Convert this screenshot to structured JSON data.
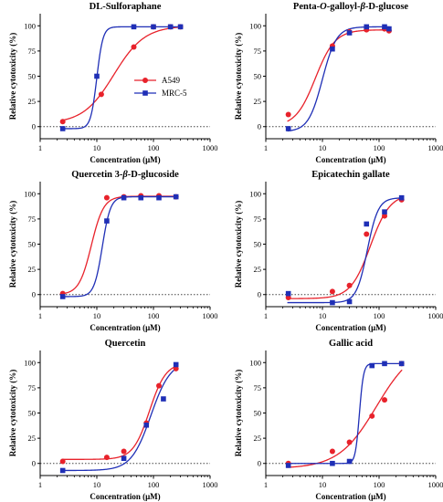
{
  "legend": {
    "entries": [
      {
        "label": "A549",
        "color": "#e8222b",
        "marker": "circle"
      },
      {
        "label": "MRC-5",
        "color": "#1f2fb6",
        "marker": "square"
      }
    ]
  },
  "chart_data": [
    {
      "type": "scatter",
      "title": "DL-Sulforaphane",
      "xlabel": "Concentration (μM)",
      "ylabel": "Relative cytotoxicity (%)",
      "x_scale": "log",
      "xlim": [
        1,
        1000
      ],
      "ylim": [
        0,
        100
      ],
      "x_ticks": [
        "1",
        "10",
        "100",
        "1000"
      ],
      "y_ticks": [
        "0",
        "25",
        "50",
        "75",
        "100"
      ],
      "series": [
        {
          "name": "A549",
          "points": [
            [
              2.5,
              5
            ],
            [
              12,
              32
            ],
            [
              45,
              79
            ],
            [
              100,
              99
            ],
            [
              200,
              99
            ],
            [
              300,
              99
            ]
          ],
          "fit": {
            "bottom": 3,
            "top": 100,
            "ec50": 20,
            "hill": 1.6
          }
        },
        {
          "name": "MRC-5",
          "points": [
            [
              2.5,
              -2
            ],
            [
              10,
              50
            ],
            [
              45,
              99
            ],
            [
              100,
              99
            ],
            [
              200,
              99
            ],
            [
              300,
              99
            ]
          ],
          "fit": {
            "bottom": -2,
            "top": 99,
            "ec50": 10,
            "hill": 8
          }
        }
      ]
    },
    {
      "type": "scatter",
      "title": "Penta-O-galloyl-β-D-glucose",
      "xlabel": "Concentration (μM)",
      "ylabel": "Relative cytotoxicity (%)",
      "x_scale": "log",
      "xlim": [
        1,
        1000
      ],
      "ylim": [
        0,
        100
      ],
      "x_ticks": [
        "1",
        "10",
        "100",
        "1000"
      ],
      "y_ticks": [
        "0",
        "25",
        "50",
        "75",
        "100"
      ],
      "series": [
        {
          "name": "A549",
          "points": [
            [
              2.5,
              12
            ],
            [
              15,
              80
            ],
            [
              30,
              94
            ],
            [
              60,
              96
            ],
            [
              125,
              97
            ],
            [
              150,
              95
            ]
          ],
          "fit": {
            "bottom": 0,
            "top": 96,
            "ec50": 7.5,
            "hill": 2.5
          }
        },
        {
          "name": "MRC-5",
          "points": [
            [
              2.5,
              -2
            ],
            [
              15,
              77
            ],
            [
              30,
              93
            ],
            [
              60,
              99
            ],
            [
              125,
              99
            ],
            [
              150,
              97
            ]
          ],
          "fit": {
            "bottom": -5,
            "top": 99,
            "ec50": 10,
            "hill": 3.5
          }
        }
      ]
    },
    {
      "type": "scatter",
      "title": "Quercetin 3-β-D-glucoside",
      "xlabel": "Concentration (μM)",
      "ylabel": "Relative cytotoxicity (%)",
      "x_scale": "log",
      "xlim": [
        1,
        1000
      ],
      "ylim": [
        0,
        100
      ],
      "x_ticks": [
        "1",
        "10",
        "100",
        "1000"
      ],
      "y_ticks": [
        "0",
        "25",
        "50",
        "75",
        "100"
      ],
      "series": [
        {
          "name": "A549",
          "points": [
            [
              2.5,
              1
            ],
            [
              15,
              96
            ],
            [
              30,
              97
            ],
            [
              60,
              98
            ],
            [
              125,
              98
            ],
            [
              250,
              97
            ]
          ],
          "fit": {
            "bottom": 0,
            "top": 97.5,
            "ec50": 8,
            "hill": 4
          }
        },
        {
          "name": "MRC-5",
          "points": [
            [
              2.5,
              -2
            ],
            [
              15,
              73
            ],
            [
              30,
              96
            ],
            [
              60,
              96
            ],
            [
              125,
              96
            ],
            [
              250,
              97
            ]
          ],
          "fit": {
            "bottom": -2,
            "top": 97,
            "ec50": 12.5,
            "hill": 6
          }
        }
      ]
    },
    {
      "type": "scatter",
      "title": "Epicatechin gallate",
      "xlabel": "Concentration (μM)",
      "ylabel": "Relative cytotoxicity (%)",
      "x_scale": "log",
      "xlim": [
        1,
        1000
      ],
      "ylim": [
        0,
        100
      ],
      "x_ticks": [
        "1",
        "10",
        "100",
        "1000"
      ],
      "y_ticks": [
        "0",
        "25",
        "50",
        "75",
        "100"
      ],
      "series": [
        {
          "name": "A549",
          "points": [
            [
              2.5,
              -3
            ],
            [
              15,
              3
            ],
            [
              30,
              9
            ],
            [
              60,
              60
            ],
            [
              125,
              78
            ],
            [
              250,
              94
            ]
          ],
          "fit": {
            "bottom": -4,
            "top": 100,
            "ec50": 70,
            "hill": 2.5
          }
        },
        {
          "name": "MRC-5",
          "points": [
            [
              2.5,
              1
            ],
            [
              15,
              -8
            ],
            [
              30,
              -7
            ],
            [
              60,
              70
            ],
            [
              125,
              82
            ],
            [
              250,
              96
            ]
          ],
          "fit": {
            "bottom": -8,
            "top": 96,
            "ec50": 62,
            "hill": 4.5
          }
        }
      ]
    },
    {
      "type": "scatter",
      "title": "Quercetin",
      "xlabel": "Concentration (μM)",
      "ylabel": "Relative cytotoxicity (%)",
      "x_scale": "log",
      "xlim": [
        1,
        1000
      ],
      "ylim": [
        0,
        100
      ],
      "x_ticks": [
        "1",
        "10",
        "100",
        "1000"
      ],
      "y_ticks": [
        "0",
        "25",
        "50",
        "75",
        "100"
      ],
      "series": [
        {
          "name": "A549",
          "points": [
            [
              2.5,
              2
            ],
            [
              15,
              6
            ],
            [
              30,
              12
            ],
            [
              75,
              40
            ],
            [
              125,
              77
            ],
            [
              250,
              94
            ]
          ],
          "fit": {
            "bottom": 4,
            "top": 100,
            "ec50": 85,
            "hill": 3
          }
        },
        {
          "name": "MRC-5",
          "points": [
            [
              2.5,
              -7
            ],
            [
              30,
              5
            ],
            [
              75,
              38
            ],
            [
              150,
              64
            ],
            [
              250,
              98
            ]
          ],
          "fit": {
            "bottom": -7,
            "top": 102,
            "ec50": 90,
            "hill": 2.5
          }
        }
      ]
    },
    {
      "type": "scatter",
      "title": "Gallic acid",
      "xlabel": "Concentration (μM)",
      "ylabel": "Relative cytotoxicity (%)",
      "x_scale": "log",
      "xlim": [
        1,
        1000
      ],
      "ylim": [
        0,
        100
      ],
      "x_ticks": [
        "1",
        "10",
        "100",
        "1000"
      ],
      "y_ticks": [
        "0",
        "25",
        "50",
        "75",
        "100"
      ],
      "series": [
        {
          "name": "A549",
          "points": [
            [
              2.5,
              0
            ],
            [
              15,
              12
            ],
            [
              30,
              21
            ],
            [
              75,
              47
            ],
            [
              125,
              63
            ],
            [
              250,
              99
            ]
          ],
          "fit": {
            "bottom": -5,
            "top": 118,
            "ec50": 90,
            "hill": 1.3
          }
        },
        {
          "name": "MRC-5",
          "points": [
            [
              2.5,
              -2
            ],
            [
              15,
              0
            ],
            [
              30,
              2
            ],
            [
              75,
              97
            ],
            [
              125,
              99
            ],
            [
              250,
              99
            ]
          ],
          "fit": {
            "bottom": 0,
            "top": 99,
            "ec50": 45,
            "hill": 12
          }
        }
      ]
    }
  ]
}
